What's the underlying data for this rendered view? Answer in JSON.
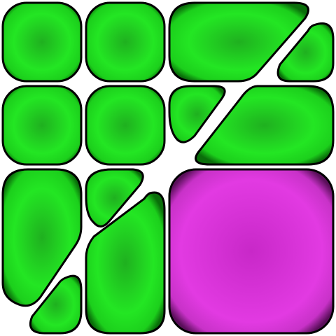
{
  "game": {
    "grid": {
      "cols": 4,
      "rows": 4
    },
    "colors": {
      "green_center": "#1fb01f",
      "green_mid": "#23e623",
      "green_edge": "#0a6e0a",
      "outline": "#000000",
      "magenta_center": "#c828c8",
      "magenta_mid": "#e23ae2",
      "magenta_edge": "#5a0f5a"
    },
    "tiles": [
      {
        "id": "r1c1",
        "color": "green",
        "shape": "square",
        "cells": [
          [
            0,
            0
          ]
        ]
      },
      {
        "id": "r1c2",
        "color": "green",
        "shape": "square",
        "cells": [
          [
            1,
            0
          ]
        ]
      },
      {
        "id": "r1-slant-big",
        "color": "green",
        "shape": "slant",
        "cells": [
          [
            2,
            0
          ],
          [
            3,
            0
          ]
        ]
      },
      {
        "id": "r1-corner-small",
        "color": "green",
        "shape": "corner",
        "cells": [
          [
            3,
            0
          ]
        ]
      },
      {
        "id": "r2c1",
        "color": "green",
        "shape": "square",
        "cells": [
          [
            0,
            1
          ]
        ]
      },
      {
        "id": "r2c2",
        "color": "green",
        "shape": "square",
        "cells": [
          [
            1,
            1
          ]
        ]
      },
      {
        "id": "r2-corner-small",
        "color": "green",
        "shape": "corner",
        "cells": [
          [
            2,
            1
          ]
        ]
      },
      {
        "id": "r2-slant-big",
        "color": "green",
        "shape": "slant",
        "cells": [
          [
            2,
            1
          ],
          [
            3,
            1
          ]
        ]
      },
      {
        "id": "r3-tall-left",
        "color": "green",
        "shape": "tall",
        "cells": [
          [
            0,
            2
          ],
          [
            0,
            3
          ]
        ]
      },
      {
        "id": "r3-corner-small",
        "color": "green",
        "shape": "corner",
        "cells": [
          [
            1,
            2
          ]
        ]
      },
      {
        "id": "r3-tall-slant",
        "color": "green",
        "shape": "tall-slant",
        "cells": [
          [
            1,
            2
          ],
          [
            1,
            3
          ]
        ]
      },
      {
        "id": "r4-corner-small",
        "color": "green",
        "shape": "corner",
        "cells": [
          [
            0,
            3
          ]
        ]
      },
      {
        "id": "magenta-block",
        "color": "magenta",
        "shape": "big-square",
        "cells": [
          [
            2,
            2
          ],
          [
            3,
            2
          ],
          [
            2,
            3
          ],
          [
            3,
            3
          ]
        ]
      }
    ]
  }
}
